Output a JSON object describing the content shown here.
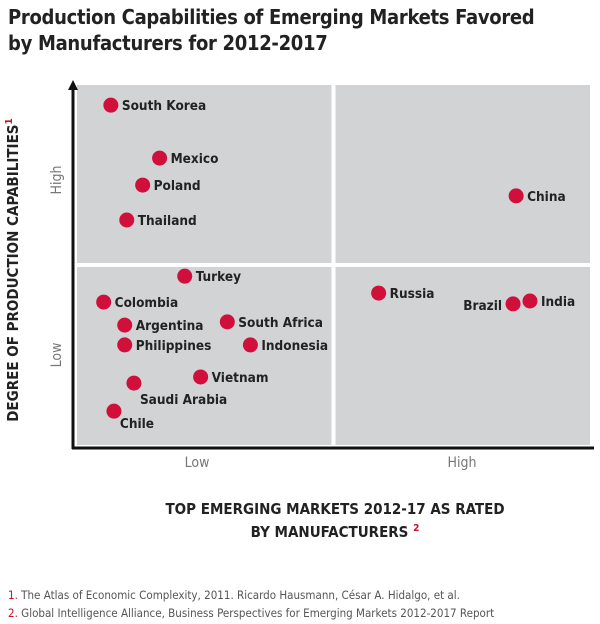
{
  "chart_data": {
    "type": "scatter",
    "title": "Production Capabilities of Emerging Markets Favored by Manufacturers for 2012-2017",
    "title_lines": [
      "Production Capabilities of Emerging Markets Favored",
      "by Manufacturers for 2012-2017"
    ],
    "xlabel_lines": [
      "TOP EMERGING MARKETS 2012-17 AS RATED",
      "BY MANUFACTURERS"
    ],
    "xlabel_note": "2",
    "ylabel": "DEGREE OF PRODUCTION CAPABILITIES",
    "ylabel_note": "1",
    "x_ticks": [
      "Low",
      "High"
    ],
    "y_ticks": [
      "Low",
      "High"
    ],
    "xlim": [
      0,
      100
    ],
    "ylim": [
      0,
      100
    ],
    "quadrant_split": {
      "x": 50,
      "y": 50
    },
    "grid": false,
    "colors": {
      "point": "#d0103a",
      "quadrant": "#d2d3d5",
      "axis": "#111111",
      "note": "#c8102e"
    },
    "points": [
      {
        "label": "South Korea",
        "x": 6.6,
        "y": 94.4
      },
      {
        "label": "Mexico",
        "x": 16.1,
        "y": 79.7
      },
      {
        "label": "Poland",
        "x": 12.8,
        "y": 72.2
      },
      {
        "label": "Thailand",
        "x": 9.7,
        "y": 62.5
      },
      {
        "label": "Turkey",
        "x": 21.0,
        "y": 46.9
      },
      {
        "label": "Colombia",
        "x": 5.2,
        "y": 39.7
      },
      {
        "label": "Argentina",
        "x": 9.3,
        "y": 33.3
      },
      {
        "label": "Philippines",
        "x": 9.3,
        "y": 27.8
      },
      {
        "label": "South Africa",
        "x": 29.3,
        "y": 34.2
      },
      {
        "label": "Indonesia",
        "x": 33.8,
        "y": 27.8
      },
      {
        "label": "Vietnam",
        "x": 24.1,
        "y": 18.9
      },
      {
        "label": "Saudi Arabia",
        "x": 11.1,
        "y": 17.2
      },
      {
        "label": "Chile",
        "x": 7.2,
        "y": 9.4
      },
      {
        "label": "China",
        "x": 85.6,
        "y": 69.2
      },
      {
        "label": "Russia",
        "x": 58.8,
        "y": 42.2
      },
      {
        "label": "Brazil",
        "x": 85.0,
        "y": 39.2
      },
      {
        "label": "India",
        "x": 88.3,
        "y": 40.0
      }
    ]
  },
  "footnotes": [
    {
      "num": "1.",
      "text": "The Atlas of Economic Complexity, 2011. Ricardo Hausmann, César A. Hidalgo, et al."
    },
    {
      "num": "2.",
      "text": "Global Intelligence Alliance, Business Perspectives for Emerging Markets 2012-2017 Report"
    }
  ]
}
